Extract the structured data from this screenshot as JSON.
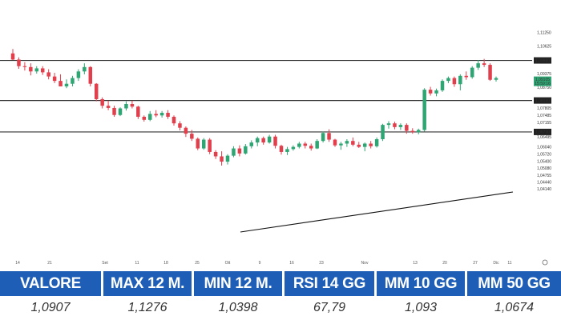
{
  "chart_data": {
    "type": "candlestick",
    "y_ticks": [
      "1,11250",
      "1,10625",
      "1,09980",
      "1,09375",
      "1,08750",
      "1,08160",
      "1,07805",
      "1,07485",
      "1,07155",
      "1,06730",
      "1,06495",
      "1,06040",
      "1,05720",
      "1,05400",
      "1,05080",
      "1,04755",
      "1,04440",
      "1,04140"
    ],
    "x_ticks": [
      "14",
      "21",
      "Set",
      "11",
      "18",
      "25",
      "Ott",
      "9",
      "16",
      "23",
      "Nov",
      "13",
      "20",
      "27",
      "Dic",
      "11"
    ],
    "levels": [
      "1,09980",
      "1,08160",
      "1,06730"
    ],
    "last_price": "1,09105",
    "last_label2": "15:59:16",
    "candles": [
      {
        "o": 1.103,
        "h": 1.105,
        "l": 1.1,
        "c": 1.1002
      },
      {
        "o": 1.1002,
        "h": 1.1012,
        "l": 1.096,
        "c": 1.0972
      },
      {
        "o": 1.0972,
        "h": 1.099,
        "l": 1.0952,
        "c": 1.0968
      },
      {
        "o": 1.0968,
        "h": 1.0985,
        "l": 1.093,
        "c": 1.0948
      },
      {
        "o": 1.0948,
        "h": 1.0972,
        "l": 1.0938,
        "c": 1.0962
      },
      {
        "o": 1.0962,
        "h": 1.0972,
        "l": 1.0932,
        "c": 1.0944
      },
      {
        "o": 1.0944,
        "h": 1.0958,
        "l": 1.0912,
        "c": 1.0925
      },
      {
        "o": 1.0925,
        "h": 1.0942,
        "l": 1.0895,
        "c": 1.0905
      },
      {
        "o": 1.0905,
        "h": 1.0935,
        "l": 1.088,
        "c": 1.088
      },
      {
        "o": 1.088,
        "h": 1.0912,
        "l": 1.0872,
        "c": 1.0892
      },
      {
        "o": 1.0892,
        "h": 1.0928,
        "l": 1.088,
        "c": 1.0918
      },
      {
        "o": 1.0918,
        "h": 1.0958,
        "l": 1.0905,
        "c": 1.0948
      },
      {
        "o": 1.0948,
        "h": 1.0985,
        "l": 1.0935,
        "c": 1.0968
      },
      {
        "o": 1.0968,
        "h": 1.0972,
        "l": 1.088,
        "c": 1.0892
      },
      {
        "o": 1.0892,
        "h": 1.0895,
        "l": 1.0812,
        "c": 1.0822
      },
      {
        "o": 1.0822,
        "h": 1.083,
        "l": 1.078,
        "c": 1.0792
      },
      {
        "o": 1.0792,
        "h": 1.0815,
        "l": 1.0772,
        "c": 1.0782
      },
      {
        "o": 1.0782,
        "h": 1.0792,
        "l": 1.0742,
        "c": 1.075
      },
      {
        "o": 1.075,
        "h": 1.0785,
        "l": 1.0745,
        "c": 1.078
      },
      {
        "o": 1.078,
        "h": 1.0812,
        "l": 1.077,
        "c": 1.08
      },
      {
        "o": 1.08,
        "h": 1.0815,
        "l": 1.078,
        "c": 1.0788
      },
      {
        "o": 1.0788,
        "h": 1.0792,
        "l": 1.0732,
        "c": 1.0742
      },
      {
        "o": 1.0742,
        "h": 1.0748,
        "l": 1.072,
        "c": 1.0728
      },
      {
        "o": 1.0728,
        "h": 1.0768,
        "l": 1.0722,
        "c": 1.0755
      },
      {
        "o": 1.0755,
        "h": 1.0772,
        "l": 1.074,
        "c": 1.0748
      },
      {
        "o": 1.0748,
        "h": 1.0768,
        "l": 1.0738,
        "c": 1.076
      },
      {
        "o": 1.076,
        "h": 1.0772,
        "l": 1.0732,
        "c": 1.0742
      },
      {
        "o": 1.0742,
        "h": 1.0748,
        "l": 1.0702,
        "c": 1.0712
      },
      {
        "o": 1.0712,
        "h": 1.0722,
        "l": 1.068,
        "c": 1.0692
      },
      {
        "o": 1.0692,
        "h": 1.0698,
        "l": 1.065,
        "c": 1.0665
      },
      {
        "o": 1.0665,
        "h": 1.0682,
        "l": 1.0632,
        "c": 1.0642
      },
      {
        "o": 1.0642,
        "h": 1.0648,
        "l": 1.059,
        "c": 1.0598
      },
      {
        "o": 1.0598,
        "h": 1.0645,
        "l": 1.0592,
        "c": 1.0638
      },
      {
        "o": 1.0638,
        "h": 1.0645,
        "l": 1.0572,
        "c": 1.0582
      },
      {
        "o": 1.0582,
        "h": 1.059,
        "l": 1.055,
        "c": 1.0562
      },
      {
        "o": 1.0562,
        "h": 1.0585,
        "l": 1.052,
        "c": 1.0538
      },
      {
        "o": 1.0538,
        "h": 1.0572,
        "l": 1.0525,
        "c": 1.0565
      },
      {
        "o": 1.0565,
        "h": 1.0608,
        "l": 1.0558,
        "c": 1.0598
      },
      {
        "o": 1.0598,
        "h": 1.0612,
        "l": 1.0562,
        "c": 1.0575
      },
      {
        "o": 1.0575,
        "h": 1.0618,
        "l": 1.057,
        "c": 1.0608
      },
      {
        "o": 1.0608,
        "h": 1.0635,
        "l": 1.0598,
        "c": 1.0625
      },
      {
        "o": 1.0625,
        "h": 1.0652,
        "l": 1.0608,
        "c": 1.0645
      },
      {
        "o": 1.0645,
        "h": 1.0652,
        "l": 1.0615,
        "c": 1.0625
      },
      {
        "o": 1.0625,
        "h": 1.066,
        "l": 1.062,
        "c": 1.0652
      },
      {
        "o": 1.0652,
        "h": 1.066,
        "l": 1.0598,
        "c": 1.061
      },
      {
        "o": 1.061,
        "h": 1.0615,
        "l": 1.057,
        "c": 1.0582
      },
      {
        "o": 1.0582,
        "h": 1.0605,
        "l": 1.0568,
        "c": 1.0595
      },
      {
        "o": 1.0595,
        "h": 1.0612,
        "l": 1.0588,
        "c": 1.0605
      },
      {
        "o": 1.0605,
        "h": 1.0628,
        "l": 1.0598,
        "c": 1.062
      },
      {
        "o": 1.062,
        "h": 1.0628,
        "l": 1.0598,
        "c": 1.061
      },
      {
        "o": 1.061,
        "h": 1.062,
        "l": 1.0588,
        "c": 1.0598
      },
      {
        "o": 1.0598,
        "h": 1.064,
        "l": 1.0595,
        "c": 1.0632
      },
      {
        "o": 1.0632,
        "h": 1.0675,
        "l": 1.0625,
        "c": 1.0668
      },
      {
        "o": 1.0668,
        "h": 1.0685,
        "l": 1.0628,
        "c": 1.0638
      },
      {
        "o": 1.0638,
        "h": 1.0642,
        "l": 1.0605,
        "c": 1.0612
      },
      {
        "o": 1.0612,
        "h": 1.0628,
        "l": 1.0592,
        "c": 1.062
      },
      {
        "o": 1.062,
        "h": 1.064,
        "l": 1.0605,
        "c": 1.0632
      },
      {
        "o": 1.0632,
        "h": 1.0648,
        "l": 1.0608,
        "c": 1.0615
      },
      {
        "o": 1.0615,
        "h": 1.0628,
        "l": 1.06,
        "c": 1.0605
      },
      {
        "o": 1.0605,
        "h": 1.0625,
        "l": 1.0585,
        "c": 1.062
      },
      {
        "o": 1.062,
        "h": 1.0632,
        "l": 1.0598,
        "c": 1.0608
      },
      {
        "o": 1.0608,
        "h": 1.0648,
        "l": 1.0602,
        "c": 1.064
      },
      {
        "o": 1.064,
        "h": 1.071,
        "l": 1.0632,
        "c": 1.0705
      },
      {
        "o": 1.0705,
        "h": 1.0722,
        "l": 1.0688,
        "c": 1.0712
      },
      {
        "o": 1.0712,
        "h": 1.072,
        "l": 1.0685,
        "c": 1.0695
      },
      {
        "o": 1.0695,
        "h": 1.0712,
        "l": 1.0682,
        "c": 1.0705
      },
      {
        "o": 1.0705,
        "h": 1.0712,
        "l": 1.0665,
        "c": 1.0678
      },
      {
        "o": 1.0678,
        "h": 1.069,
        "l": 1.0665,
        "c": 1.0672
      },
      {
        "o": 1.0672,
        "h": 1.0688,
        "l": 1.0662,
        "c": 1.0682
      },
      {
        "o": 1.0682,
        "h": 1.0872,
        "l": 1.0675,
        "c": 1.0865
      },
      {
        "o": 1.0865,
        "h": 1.0878,
        "l": 1.0838,
        "c": 1.0848
      },
      {
        "o": 1.0848,
        "h": 1.087,
        "l": 1.0835,
        "c": 1.0862
      },
      {
        "o": 1.0862,
        "h": 1.0912,
        "l": 1.0855,
        "c": 1.0905
      },
      {
        "o": 1.0905,
        "h": 1.0925,
        "l": 1.0895,
        "c": 1.0918
      },
      {
        "o": 1.0918,
        "h": 1.0925,
        "l": 1.0878,
        "c": 1.089
      },
      {
        "o": 1.089,
        "h": 1.0935,
        "l": 1.0862,
        "c": 1.0928
      },
      {
        "o": 1.0928,
        "h": 1.0948,
        "l": 1.091,
        "c": 1.0922
      },
      {
        "o": 1.0922,
        "h": 1.0972,
        "l": 1.0915,
        "c": 1.0965
      },
      {
        "o": 1.0965,
        "h": 1.1,
        "l": 1.0955,
        "c": 1.0985
      },
      {
        "o": 1.0985,
        "h": 1.1005,
        "l": 1.0968,
        "c": 1.0978
      },
      {
        "o": 1.0978,
        "h": 1.0985,
        "l": 1.0905,
        "c": 1.091
      },
      {
        "o": 1.091,
        "h": 1.0925,
        "l": 1.0902,
        "c": 1.0918
      }
    ]
  },
  "stats": {
    "headers": [
      "VALORE",
      "MAX 12 M.",
      "MIN 12 M.",
      "RSI 14 GG",
      "MM 10 GG",
      "MM 50 GG"
    ],
    "values": [
      "1,0907",
      "1,1276",
      "1,0398",
      "67,79",
      "1,093",
      "1,0674"
    ]
  },
  "colors": {
    "up": "#2ea572",
    "down": "#e23f4d",
    "header_bg": "#1e5eb6",
    "level_line": "#333333"
  }
}
